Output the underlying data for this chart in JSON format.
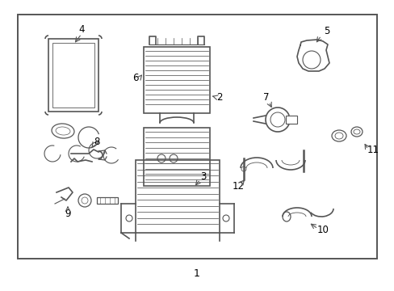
{
  "bg_color": "#ffffff",
  "border_color": "#555555",
  "line_color": "#555555",
  "fig_width": 4.89,
  "fig_height": 3.6,
  "dpi": 100
}
